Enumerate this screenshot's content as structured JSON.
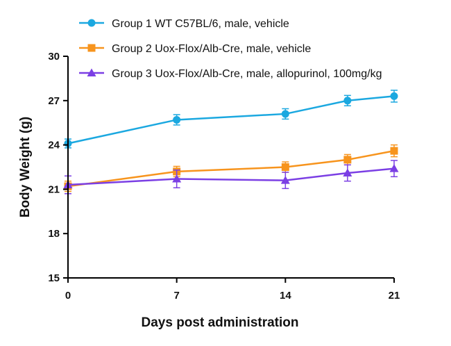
{
  "chart_data": {
    "type": "line",
    "title": "",
    "xlabel": "Days post administration",
    "ylabel": "Body Weight (g)",
    "x_ticks": [
      0,
      7,
      14,
      21
    ],
    "y_ticks": [
      15,
      18,
      21,
      24,
      27,
      30
    ],
    "xlim": [
      0,
      21
    ],
    "ylim": [
      15,
      30
    ],
    "grid": false,
    "legend_position": "top-left",
    "series": [
      {
        "name": "Group 1 WT C57BL/6, male, vehicle",
        "color": "#1ba8e0",
        "marker": "circle",
        "x": [
          0,
          7,
          14,
          18,
          21
        ],
        "y": [
          24.1,
          25.7,
          26.1,
          27.0,
          27.3
        ],
        "err": [
          0.3,
          0.35,
          0.35,
          0.35,
          0.4
        ]
      },
      {
        "name": "Group 2 Uox-Flox/Alb-Cre, male, vehicle",
        "color": "#f7941d",
        "marker": "square",
        "x": [
          0,
          7,
          14,
          18,
          21
        ],
        "y": [
          21.2,
          22.2,
          22.5,
          23.0,
          23.6
        ],
        "err": [
          0.35,
          0.35,
          0.35,
          0.35,
          0.4
        ]
      },
      {
        "name": "Group 3 Uox-Flox/Alb-Cre, male, allopurinol, 100mg/kg",
        "color": "#7b3fe4",
        "marker": "triangle",
        "x": [
          0,
          7,
          14,
          18,
          21
        ],
        "y": [
          21.3,
          21.7,
          21.6,
          22.1,
          22.4
        ],
        "err": [
          0.6,
          0.6,
          0.55,
          0.55,
          0.55
        ]
      }
    ]
  }
}
